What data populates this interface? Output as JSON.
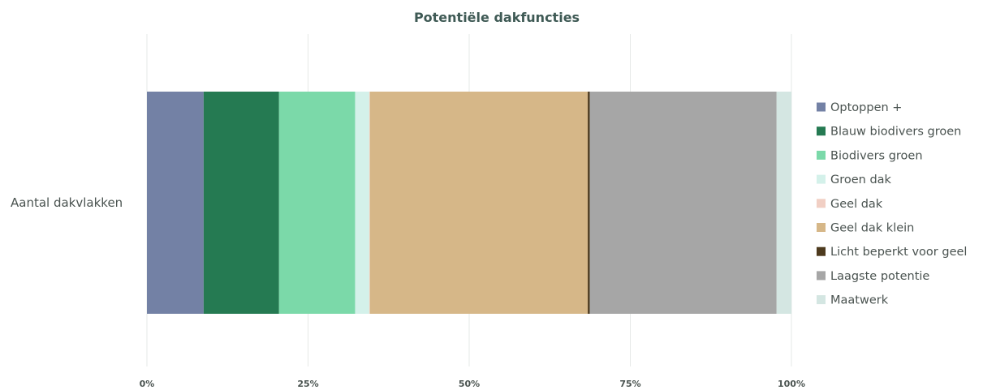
{
  "chart_data": {
    "type": "bar",
    "orientation": "horizontal",
    "stacked": "percent",
    "title": "Potentiële dakfuncties",
    "categories": [
      "Aantal dakvlakken"
    ],
    "xlim": [
      0,
      100
    ],
    "x_ticks": [
      "0%",
      "25%",
      "50%",
      "75%",
      "100%"
    ],
    "grid": true,
    "legend_position": "right",
    "series": [
      {
        "name": "Optoppen +",
        "values": [
          8.8
        ],
        "color": "#7381a5"
      },
      {
        "name": "Blauw biodivers groen",
        "values": [
          11.7
        ],
        "color": "#257a52"
      },
      {
        "name": "Biodivers groen",
        "values": [
          11.8
        ],
        "color": "#7bd9a9"
      },
      {
        "name": "Groen dak",
        "values": [
          2.2
        ],
        "color": "#d4f1ea"
      },
      {
        "name": "Geel dak",
        "values": [
          0.1
        ],
        "color": "#f1cfc4"
      },
      {
        "name": "Geel dak klein",
        "values": [
          33.8
        ],
        "color": "#d6b788"
      },
      {
        "name": "Licht beperkt voor geel",
        "values": [
          0.3
        ],
        "color": "#4d3a1e"
      },
      {
        "name": "Laagste potentie",
        "values": [
          29.0
        ],
        "color": "#a6a6a6"
      },
      {
        "name": "Maatwerk",
        "values": [
          2.3
        ],
        "color": "#d4e6e2"
      }
    ]
  }
}
